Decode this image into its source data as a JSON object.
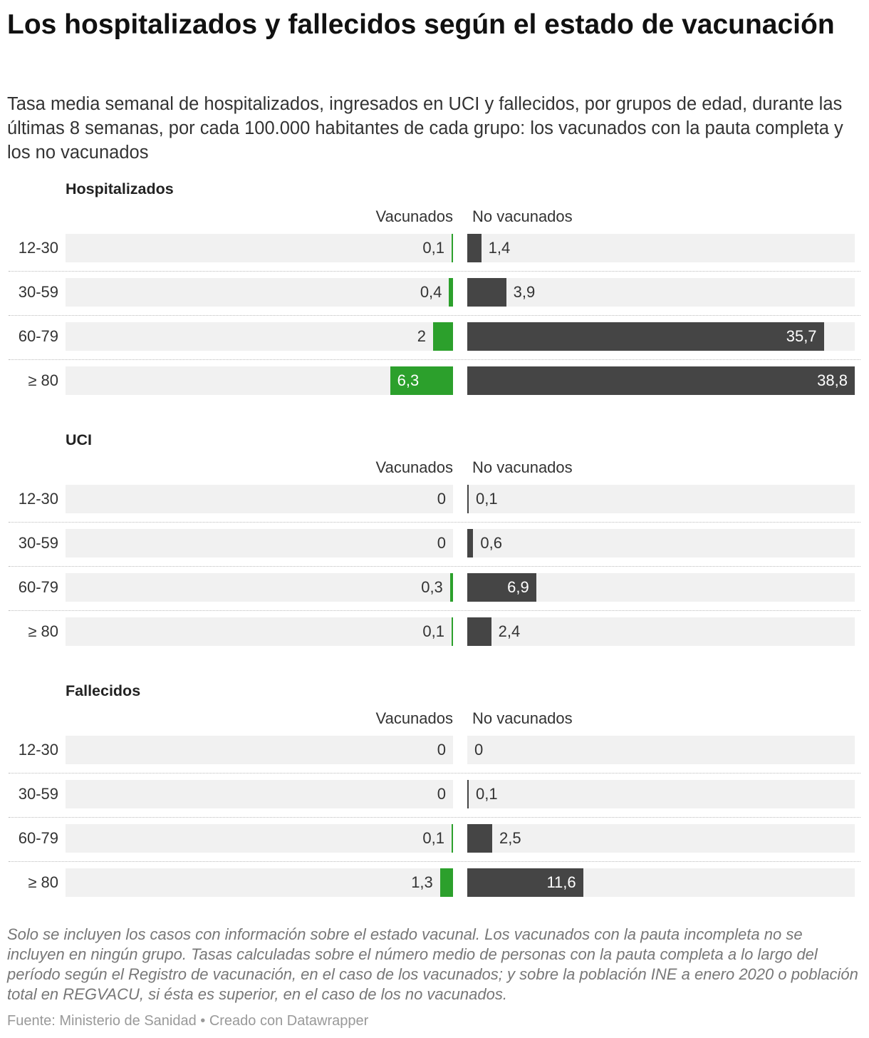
{
  "title": "Los hospitalizados y fallecidos según el estado de vacunación",
  "subtitle": "Tasa media semanal de hospitalizados, ingresados en UCI y fallecidos, por grupos de edad, durante las últimas 8 semanas, por cada 100.000 habitantes de cada grupo: los vacunados con la pauta completa y los no vacunados",
  "footnote": "Solo se incluyen los casos con información sobre el estado vacunal. Los vacunados con la pauta incompleta no se incluyen en ningún grupo. Tasas calculadas sobre el número medio de personas con la pauta completa a lo largo del período según el Registro de vacunación, en el caso de los vacunados; y sobre la población INE a enero 2020 o población total en REGVACU, si ésta es superior, en el caso de los no vacunados.",
  "footer": "Fuente: Ministerio de Sanidad • Creado con Datawrapper",
  "colors": {
    "vacunados": "#2ca02c",
    "no_vacunados": "#454545",
    "track": "#f1f1f1"
  },
  "chart_data": [
    {
      "type": "bar",
      "title": "Hospitalizados",
      "categories": [
        "12-30",
        "30-59",
        "60-79",
        "≥ 80"
      ],
      "series": [
        {
          "name": "Vacunados",
          "values": [
            0.1,
            0.4,
            2,
            6.3
          ],
          "labels": [
            "0,1",
            "0,4",
            "2",
            "6,3"
          ]
        },
        {
          "name": "No vacunados",
          "values": [
            1.4,
            3.9,
            35.7,
            38.8
          ],
          "labels": [
            "1,4",
            "3,9",
            "35,7",
            "38,8"
          ]
        }
      ],
      "xlim": [
        0,
        38.8
      ]
    },
    {
      "type": "bar",
      "title": "UCI",
      "categories": [
        "12-30",
        "30-59",
        "60-79",
        "≥ 80"
      ],
      "series": [
        {
          "name": "Vacunados",
          "values": [
            0,
            0,
            0.3,
            0.1
          ],
          "labels": [
            "0",
            "0",
            "0,3",
            "0,1"
          ]
        },
        {
          "name": "No vacunados",
          "values": [
            0.1,
            0.6,
            6.9,
            2.4
          ],
          "labels": [
            "0,1",
            "0,6",
            "6,9",
            "2,4"
          ]
        }
      ],
      "xlim": [
        0,
        38.8
      ]
    },
    {
      "type": "bar",
      "title": "Fallecidos",
      "categories": [
        "12-30",
        "30-59",
        "60-79",
        "≥ 80"
      ],
      "series": [
        {
          "name": "Vacunados",
          "values": [
            0,
            0,
            0.1,
            1.3
          ],
          "labels": [
            "0",
            "0",
            "0,1",
            "1,3"
          ]
        },
        {
          "name": "No vacunados",
          "values": [
            0,
            0.1,
            2.5,
            11.6
          ],
          "labels": [
            "0",
            "0,1",
            "2,5",
            "11,6"
          ]
        }
      ],
      "xlim": [
        0,
        38.8
      ]
    }
  ]
}
